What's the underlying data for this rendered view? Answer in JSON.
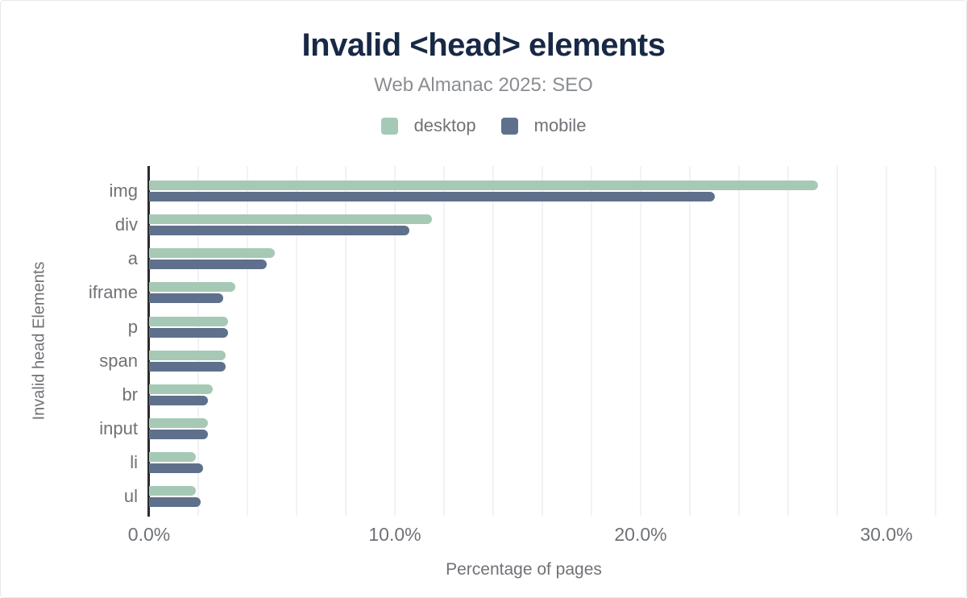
{
  "chart": {
    "title": "Invalid <head> elements",
    "subtitle": "Web Almanac 2025: SEO",
    "xlabel": "Percentage of pages",
    "ylabel": "Invalid head Elements"
  },
  "legend": {
    "items": [
      {
        "label": "desktop",
        "color": "#a5c9b5"
      },
      {
        "label": "mobile",
        "color": "#5e708b"
      }
    ]
  },
  "colors": {
    "title": "#182946",
    "muted_text": "#6f7276",
    "subtitle_text": "#8a8d91",
    "axis_line": "#2b2b2b",
    "gridline": "#f2f2f5",
    "desktop": "#a5c9b5",
    "mobile": "#5e708b"
  },
  "chart_data": {
    "type": "bar",
    "orientation": "horizontal",
    "title": "Invalid <head> elements",
    "subtitle": "Web Almanac 2025: SEO",
    "xlabel": "Percentage of pages",
    "ylabel": "Invalid head Elements",
    "categories": [
      "img",
      "div",
      "a",
      "iframe",
      "p",
      "span",
      "br",
      "input",
      "li",
      "ul"
    ],
    "series": [
      {
        "name": "desktop",
        "color": "#a5c9b5",
        "values": [
          27.2,
          11.5,
          5.1,
          3.5,
          3.2,
          3.1,
          2.6,
          2.4,
          1.9,
          1.9
        ]
      },
      {
        "name": "mobile",
        "color": "#5e708b",
        "values": [
          23.0,
          10.6,
          4.8,
          3.0,
          3.2,
          3.1,
          2.4,
          2.4,
          2.2,
          2.1
        ]
      }
    ],
    "value_unit": "%",
    "xlim": [
      0,
      32
    ],
    "xticks": [
      0,
      10,
      20,
      30
    ],
    "xtick_labels": [
      "0.0%",
      "10.0%",
      "20.0%",
      "30.0%"
    ],
    "grid_interval": 2,
    "grid": true,
    "legend_position": "top"
  }
}
